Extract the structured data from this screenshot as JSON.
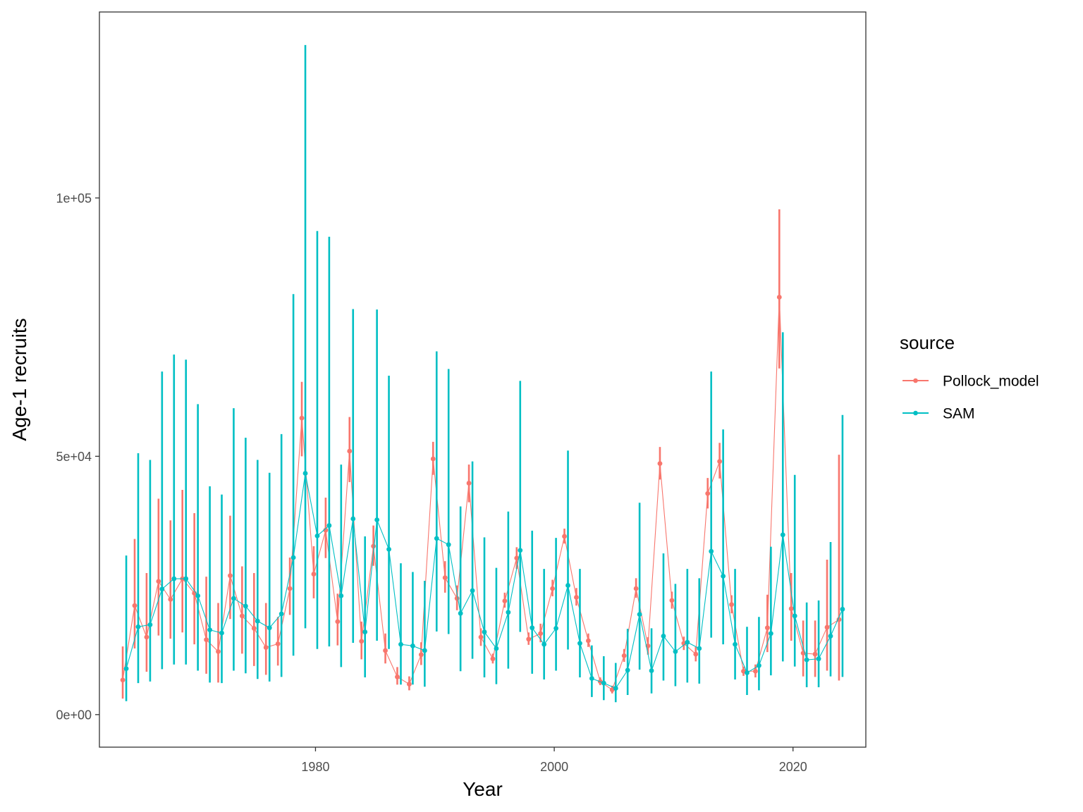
{
  "chart_data": {
    "type": "line",
    "xlabel": "Year",
    "ylabel": "Age-1 recruits",
    "xlim": [
      1961.9,
      2026.1
    ],
    "ylim": [
      -6300,
      136000
    ],
    "x_ticks": [
      1980,
      2000,
      2020
    ],
    "x_tick_labels": [
      "1980",
      "2000",
      "2020"
    ],
    "y_ticks": [
      0,
      50000,
      100000
    ],
    "y_tick_labels": [
      "0e+00",
      "5e+04",
      "1e+05"
    ],
    "grid": false,
    "legend_position": "right",
    "legend_title": "source",
    "series": [
      {
        "name": "Pollock_model",
        "color": "#F8766D",
        "years": [
          1964,
          1965,
          1966,
          1967,
          1968,
          1969,
          1970,
          1971,
          1972,
          1973,
          1974,
          1975,
          1976,
          1977,
          1978,
          1979,
          1980,
          1981,
          1982,
          1983,
          1984,
          1985,
          1986,
          1987,
          1988,
          1989,
          1990,
          1991,
          1992,
          1993,
          1994,
          1995,
          1996,
          1997,
          1998,
          1999,
          2000,
          2001,
          2002,
          2003,
          2004,
          2005,
          2006,
          2007,
          2008,
          2009,
          2010,
          2011,
          2012,
          2013,
          2014,
          2015,
          2016,
          2017,
          2018,
          2019,
          2020,
          2021,
          2022,
          2023,
          2024
        ],
        "estimate": [
          6700,
          21100,
          15000,
          25800,
          22300,
          26300,
          23500,
          14500,
          12200,
          26900,
          19100,
          16700,
          13000,
          13700,
          24400,
          57400,
          27200,
          35700,
          18000,
          51000,
          14200,
          32600,
          12400,
          7300,
          5900,
          11600,
          49500,
          26500,
          22500,
          44800,
          15000,
          10800,
          22000,
          30300,
          14600,
          15700,
          24400,
          34500,
          22700,
          14300,
          6400,
          4800,
          11400,
          24400,
          13300,
          48600,
          22100,
          13800,
          11700,
          42800,
          49000,
          21300,
          8400,
          8400,
          16800,
          80800,
          20500,
          11900,
          11700,
          16900,
          18400
        ],
        "lower": [
          3100,
          12800,
          8300,
          15300,
          14700,
          15900,
          13600,
          7900,
          6200,
          18500,
          11800,
          9400,
          7700,
          9500,
          19300,
          50000,
          22500,
          30300,
          13400,
          45000,
          10700,
          28800,
          9900,
          5800,
          4700,
          9600,
          46400,
          23600,
          20200,
          41100,
          13300,
          9900,
          20700,
          28200,
          13500,
          14000,
          22900,
          33100,
          21100,
          13100,
          5700,
          4100,
          10200,
          22600,
          11600,
          45500,
          20500,
          12500,
          10300,
          39900,
          45700,
          19600,
          7500,
          7200,
          12100,
          67000,
          14300,
          7400,
          7300,
          8500,
          6600
        ],
        "upper": [
          13200,
          34000,
          27400,
          41800,
          37600,
          43500,
          39000,
          26700,
          21600,
          38500,
          28700,
          27400,
          21600,
          18900,
          30400,
          64400,
          32600,
          42000,
          23400,
          57600,
          18000,
          36600,
          15700,
          9200,
          7400,
          14000,
          52800,
          29700,
          25000,
          48400,
          16700,
          11800,
          23600,
          32400,
          15900,
          17600,
          26100,
          36000,
          24500,
          15700,
          7200,
          5600,
          12700,
          26400,
          15000,
          51800,
          23800,
          15100,
          13100,
          45800,
          52600,
          23100,
          9300,
          9700,
          23200,
          97800,
          27400,
          18200,
          18200,
          30000,
          50300
        ]
      },
      {
        "name": "SAM",
        "color": "#00BFC4",
        "years": [
          1964,
          1965,
          1966,
          1967,
          1968,
          1969,
          1970,
          1971,
          1972,
          1973,
          1974,
          1975,
          1976,
          1977,
          1978,
          1979,
          1980,
          1981,
          1982,
          1983,
          1984,
          1985,
          1986,
          1987,
          1988,
          1989,
          1990,
          1991,
          1992,
          1993,
          1994,
          1995,
          1996,
          1997,
          1998,
          1999,
          2000,
          2001,
          2002,
          2003,
          2004,
          2005,
          2006,
          2007,
          2008,
          2009,
          2010,
          2011,
          2012,
          2013,
          2014,
          2015,
          2016,
          2017,
          2018,
          2019,
          2020,
          2021,
          2022,
          2023,
          2024
        ],
        "estimate": [
          8900,
          17000,
          17400,
          24300,
          26300,
          26300,
          23000,
          16400,
          15800,
          22500,
          21000,
          18100,
          16800,
          19500,
          30400,
          46700,
          34600,
          36600,
          23000,
          37900,
          16000,
          37700,
          32000,
          13600,
          13300,
          12400,
          34100,
          32900,
          19600,
          24000,
          16000,
          12800,
          19800,
          31800,
          16800,
          13600,
          16700,
          25000,
          13800,
          7000,
          6100,
          5100,
          8600,
          19400,
          8500,
          15200,
          12200,
          14000,
          12800,
          31600,
          26800,
          13600,
          8100,
          9500,
          15700,
          34800,
          19100,
          10600,
          10800,
          15200,
          20400
        ],
        "lower": [
          2600,
          6100,
          6400,
          8800,
          9700,
          9700,
          8500,
          6200,
          6100,
          8500,
          8000,
          6900,
          6400,
          7300,
          11400,
          16700,
          12700,
          13200,
          9200,
          13900,
          7200,
          14300,
          12700,
          5800,
          5800,
          5400,
          16100,
          15600,
          8400,
          10800,
          7200,
          5900,
          8900,
          16000,
          7900,
          6800,
          8500,
          12600,
          7200,
          3400,
          2800,
          2400,
          3800,
          8700,
          4100,
          6600,
          5500,
          6200,
          6000,
          14900,
          13600,
          6800,
          3800,
          4700,
          7600,
          10300,
          9300,
          5300,
          5300,
          7400,
          7300
        ],
        "upper": [
          30800,
          50600,
          49300,
          66400,
          69700,
          68700,
          60100,
          44200,
          42600,
          59300,
          53600,
          49300,
          46800,
          54300,
          81400,
          129600,
          93600,
          92500,
          48400,
          78500,
          34500,
          78400,
          65600,
          29300,
          27600,
          25900,
          70300,
          66900,
          40300,
          49000,
          34300,
          28400,
          39300,
          64600,
          35600,
          28200,
          34200,
          51100,
          28200,
          13400,
          11300,
          10000,
          16600,
          41000,
          16700,
          31200,
          25300,
          28200,
          26400,
          66400,
          55200,
          28200,
          17000,
          18900,
          32500,
          74000,
          46400,
          21700,
          22100,
          33400,
          58000
        ]
      }
    ]
  }
}
